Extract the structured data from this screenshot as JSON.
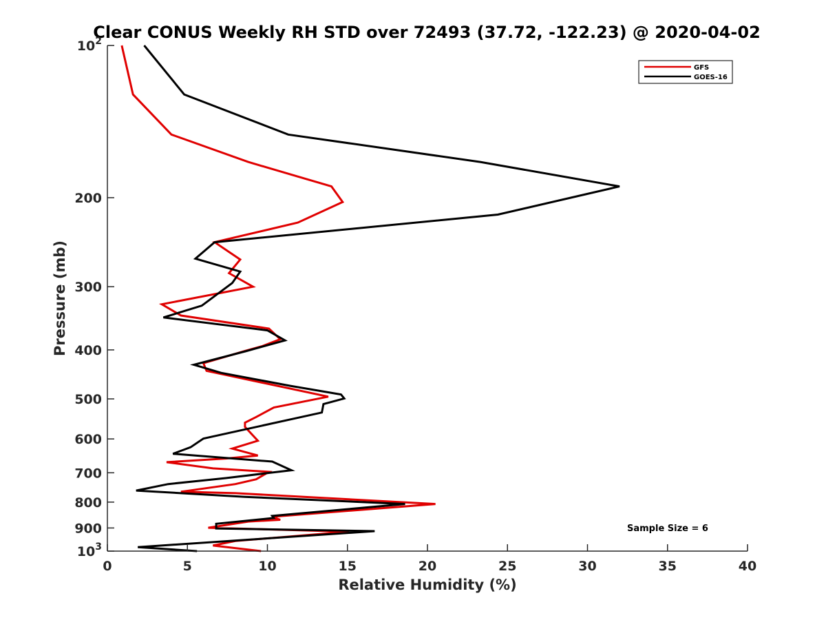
{
  "chart_data": {
    "type": "line",
    "title": "Clear CONUS Weekly RH STD over 72493 (37.72, -122.23) @ 2020-04-02",
    "xlabel": "Relative Humidity (%)",
    "ylabel": "Pressure (mb)",
    "xlim": [
      0,
      40
    ],
    "ylim": [
      100,
      1000
    ],
    "yscale": "log",
    "y_reversed": true,
    "x_ticks": [
      0,
      5,
      10,
      15,
      20,
      25,
      30,
      35,
      40
    ],
    "x_tick_labels": [
      "0",
      "5",
      "10",
      "15",
      "20",
      "25",
      "30",
      "35",
      "40"
    ],
    "y_ticks": [
      100,
      200,
      300,
      400,
      500,
      600,
      700,
      800,
      900,
      1000
    ],
    "y_tick_labels": [
      {
        "base": "10",
        "exp": "2"
      },
      {
        "base": "200",
        "exp": ""
      },
      {
        "base": "300",
        "exp": ""
      },
      {
        "base": "400",
        "exp": ""
      },
      {
        "base": "500",
        "exp": ""
      },
      {
        "base": "600",
        "exp": ""
      },
      {
        "base": "700",
        "exp": ""
      },
      {
        "base": "800",
        "exp": ""
      },
      {
        "base": "900",
        "exp": ""
      },
      {
        "base": "10",
        "exp": "3"
      }
    ],
    "grid": false,
    "legend_position": "top-right",
    "annotation": "Sample Size = 6",
    "series": [
      {
        "name": "GFS",
        "color": "#e00000",
        "points": [
          [
            0.9,
            100
          ],
          [
            1.6,
            125
          ],
          [
            4.0,
            150
          ],
          [
            8.8,
            170
          ],
          [
            14.0,
            190
          ],
          [
            14.7,
            204
          ],
          [
            11.9,
            224
          ],
          [
            6.7,
            245
          ],
          [
            8.3,
            265
          ],
          [
            7.6,
            282
          ],
          [
            9.1,
            300
          ],
          [
            3.4,
            325
          ],
          [
            4.6,
            342
          ],
          [
            10.1,
            363
          ],
          [
            10.8,
            381
          ],
          [
            9.7,
            393
          ],
          [
            8.6,
            402
          ],
          [
            6.0,
            425
          ],
          [
            6.2,
            440
          ],
          [
            13.8,
            495
          ],
          [
            10.4,
            520
          ],
          [
            9.3,
            543
          ],
          [
            8.6,
            557
          ],
          [
            8.6,
            568
          ],
          [
            9.4,
            605
          ],
          [
            7.8,
            627
          ],
          [
            9.4,
            647
          ],
          [
            7.4,
            656
          ],
          [
            3.7,
            667
          ],
          [
            6.6,
            686
          ],
          [
            10.1,
            697
          ],
          [
            9.3,
            721
          ],
          [
            8.0,
            737
          ],
          [
            4.6,
            763
          ],
          [
            8.0,
            768
          ],
          [
            20.5,
            807
          ],
          [
            10.3,
            855
          ],
          [
            10.8,
            867
          ],
          [
            8.8,
            874
          ],
          [
            6.3,
            899
          ],
          [
            15.1,
            915
          ],
          [
            8.0,
            955
          ],
          [
            6.6,
            975
          ],
          [
            9.6,
            1000
          ]
        ]
      },
      {
        "name": "GOES-16",
        "color": "#000000",
        "points": [
          [
            2.3,
            100
          ],
          [
            4.8,
            125
          ],
          [
            11.3,
            150
          ],
          [
            23.3,
            170
          ],
          [
            32.0,
            190
          ],
          [
            24.4,
            216
          ],
          [
            6.7,
            245
          ],
          [
            5.5,
            264
          ],
          [
            8.3,
            280
          ],
          [
            7.8,
            295
          ],
          [
            5.9,
            327
          ],
          [
            3.5,
            345
          ],
          [
            10.0,
            366
          ],
          [
            11.1,
            383
          ],
          [
            8.7,
            402
          ],
          [
            5.4,
            428
          ],
          [
            7.1,
            444
          ],
          [
            11.4,
            471
          ],
          [
            14.6,
            490
          ],
          [
            14.8,
            499
          ],
          [
            13.5,
            512
          ],
          [
            13.4,
            532
          ],
          [
            6.0,
            599
          ],
          [
            5.2,
            623
          ],
          [
            4.1,
            642
          ],
          [
            10.3,
            665
          ],
          [
            11.5,
            692
          ],
          [
            7.4,
            717
          ],
          [
            3.8,
            737
          ],
          [
            1.8,
            759
          ],
          [
            8.6,
            781
          ],
          [
            18.6,
            807
          ],
          [
            10.3,
            852
          ],
          [
            10.4,
            860
          ],
          [
            6.8,
            883
          ],
          [
            6.8,
            902
          ],
          [
            16.7,
            913
          ],
          [
            1.9,
            982
          ],
          [
            5.6,
            1000
          ]
        ]
      }
    ]
  }
}
